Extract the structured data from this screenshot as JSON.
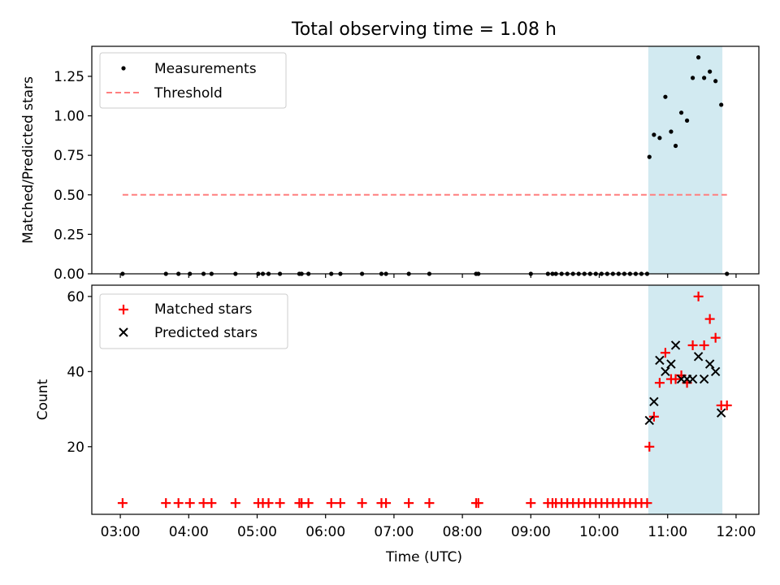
{
  "chart_data": [
    {
      "type": "scatter",
      "title": "Total observing time = 1.08 h",
      "xlabel": "",
      "ylabel": "Matched/Predicted stars",
      "xlim": [
        "02:35",
        "12:20"
      ],
      "ylim": [
        0,
        1.44
      ],
      "yticks": [
        0.0,
        0.25,
        0.5,
        0.75,
        1.0,
        1.25
      ],
      "ytick_labels": [
        "0.00",
        "0.25",
        "0.50",
        "0.75",
        "1.00",
        "1.25"
      ],
      "shaded_interval": {
        "start": "10:43",
        "end": "11:48",
        "color": "#add8e6"
      },
      "grid": false,
      "legend_position": "upper-left",
      "series": [
        {
          "name": "Measurements",
          "marker": "dot",
          "color": "#000000",
          "points": [
            {
              "x": "03:02",
              "y": 0
            },
            {
              "x": "03:40",
              "y": 0
            },
            {
              "x": "03:51",
              "y": 0
            },
            {
              "x": "04:01",
              "y": 0
            },
            {
              "x": "04:13",
              "y": 0
            },
            {
              "x": "04:20",
              "y": 0
            },
            {
              "x": "04:41",
              "y": 0
            },
            {
              "x": "05:01",
              "y": 0
            },
            {
              "x": "05:05",
              "y": 0
            },
            {
              "x": "05:10",
              "y": 0
            },
            {
              "x": "05:20",
              "y": 0
            },
            {
              "x": "05:37",
              "y": 0
            },
            {
              "x": "05:39",
              "y": 0
            },
            {
              "x": "05:45",
              "y": 0
            },
            {
              "x": "06:05",
              "y": 0
            },
            {
              "x": "06:13",
              "y": 0
            },
            {
              "x": "06:32",
              "y": 0
            },
            {
              "x": "06:49",
              "y": 0
            },
            {
              "x": "06:53",
              "y": 0
            },
            {
              "x": "07:13",
              "y": 0
            },
            {
              "x": "07:31",
              "y": 0
            },
            {
              "x": "08:12",
              "y": 0
            },
            {
              "x": "08:14",
              "y": 0
            },
            {
              "x": "09:00",
              "y": 0
            },
            {
              "x": "09:15",
              "y": 0
            },
            {
              "x": "09:19",
              "y": 0
            },
            {
              "x": "09:22",
              "y": 0
            },
            {
              "x": "09:27",
              "y": 0
            },
            {
              "x": "09:32",
              "y": 0
            },
            {
              "x": "09:37",
              "y": 0
            },
            {
              "x": "09:42",
              "y": 0
            },
            {
              "x": "09:47",
              "y": 0
            },
            {
              "x": "09:52",
              "y": 0
            },
            {
              "x": "09:57",
              "y": 0
            },
            {
              "x": "10:02",
              "y": 0
            },
            {
              "x": "10:07",
              "y": 0
            },
            {
              "x": "10:12",
              "y": 0
            },
            {
              "x": "10:17",
              "y": 0
            },
            {
              "x": "10:22",
              "y": 0
            },
            {
              "x": "10:27",
              "y": 0
            },
            {
              "x": "10:32",
              "y": 0
            },
            {
              "x": "10:37",
              "y": 0
            },
            {
              "x": "10:42",
              "y": 0
            },
            {
              "x": "10:44",
              "y": 0.74
            },
            {
              "x": "10:48",
              "y": 0.88
            },
            {
              "x": "10:53",
              "y": 0.86
            },
            {
              "x": "10:58",
              "y": 1.12
            },
            {
              "x": "11:03",
              "y": 0.9
            },
            {
              "x": "11:07",
              "y": 0.81
            },
            {
              "x": "11:12",
              "y": 1.02
            },
            {
              "x": "11:17",
              "y": 0.97
            },
            {
              "x": "11:22",
              "y": 1.24
            },
            {
              "x": "11:27",
              "y": 1.37
            },
            {
              "x": "11:32",
              "y": 1.24
            },
            {
              "x": "11:37",
              "y": 1.28
            },
            {
              "x": "11:42",
              "y": 1.22
            },
            {
              "x": "11:47",
              "y": 1.07
            },
            {
              "x": "11:52",
              "y": 0
            }
          ]
        },
        {
          "name": "Threshold",
          "type": "line",
          "style": "dashed",
          "color": "#ff7f7f",
          "points": [
            {
              "x": "03:02",
              "y": 0.5
            },
            {
              "x": "11:52",
              "y": 0.5
            }
          ]
        }
      ]
    },
    {
      "type": "scatter",
      "title": "",
      "xlabel": "Time (UTC)",
      "ylabel": "Count",
      "xlim": [
        "02:35",
        "12:20"
      ],
      "ylim": [
        2,
        63
      ],
      "yticks": [
        20,
        40,
        60
      ],
      "ytick_labels": [
        "20",
        "40",
        "60"
      ],
      "xticks": [
        "03:00",
        "04:00",
        "05:00",
        "06:00",
        "07:00",
        "08:00",
        "09:00",
        "10:00",
        "11:00",
        "12:00"
      ],
      "shaded_interval": {
        "start": "10:43",
        "end": "11:48",
        "color": "#add8e6"
      },
      "grid": false,
      "legend_position": "upper-left",
      "series": [
        {
          "name": "Matched stars",
          "marker": "plus",
          "color": "#ff0000",
          "points": [
            {
              "x": "03:02",
              "y": 5
            },
            {
              "x": "03:40",
              "y": 5
            },
            {
              "x": "03:51",
              "y": 5
            },
            {
              "x": "04:01",
              "y": 5
            },
            {
              "x": "04:13",
              "y": 5
            },
            {
              "x": "04:20",
              "y": 5
            },
            {
              "x": "04:41",
              "y": 5
            },
            {
              "x": "05:01",
              "y": 5
            },
            {
              "x": "05:05",
              "y": 5
            },
            {
              "x": "05:10",
              "y": 5
            },
            {
              "x": "05:20",
              "y": 5
            },
            {
              "x": "05:37",
              "y": 5
            },
            {
              "x": "05:39",
              "y": 5
            },
            {
              "x": "05:45",
              "y": 5
            },
            {
              "x": "06:05",
              "y": 5
            },
            {
              "x": "06:13",
              "y": 5
            },
            {
              "x": "06:32",
              "y": 5
            },
            {
              "x": "06:49",
              "y": 5
            },
            {
              "x": "06:53",
              "y": 5
            },
            {
              "x": "07:13",
              "y": 5
            },
            {
              "x": "07:31",
              "y": 5
            },
            {
              "x": "08:12",
              "y": 5
            },
            {
              "x": "08:14",
              "y": 5
            },
            {
              "x": "09:00",
              "y": 5
            },
            {
              "x": "09:15",
              "y": 5
            },
            {
              "x": "09:19",
              "y": 5
            },
            {
              "x": "09:22",
              "y": 5
            },
            {
              "x": "09:27",
              "y": 5
            },
            {
              "x": "09:32",
              "y": 5
            },
            {
              "x": "09:37",
              "y": 5
            },
            {
              "x": "09:42",
              "y": 5
            },
            {
              "x": "09:47",
              "y": 5
            },
            {
              "x": "09:52",
              "y": 5
            },
            {
              "x": "09:57",
              "y": 5
            },
            {
              "x": "10:02",
              "y": 5
            },
            {
              "x": "10:07",
              "y": 5
            },
            {
              "x": "10:12",
              "y": 5
            },
            {
              "x": "10:17",
              "y": 5
            },
            {
              "x": "10:22",
              "y": 5
            },
            {
              "x": "10:27",
              "y": 5
            },
            {
              "x": "10:32",
              "y": 5
            },
            {
              "x": "10:37",
              "y": 5
            },
            {
              "x": "10:42",
              "y": 5
            },
            {
              "x": "10:44",
              "y": 20
            },
            {
              "x": "10:48",
              "y": 28
            },
            {
              "x": "10:53",
              "y": 37
            },
            {
              "x": "10:58",
              "y": 45
            },
            {
              "x": "11:03",
              "y": 38
            },
            {
              "x": "11:07",
              "y": 38
            },
            {
              "x": "11:12",
              "y": 39
            },
            {
              "x": "11:17",
              "y": 37
            },
            {
              "x": "11:22",
              "y": 47
            },
            {
              "x": "11:27",
              "y": 60
            },
            {
              "x": "11:32",
              "y": 47
            },
            {
              "x": "11:37",
              "y": 54
            },
            {
              "x": "11:42",
              "y": 49
            },
            {
              "x": "11:47",
              "y": 31
            },
            {
              "x": "11:52",
              "y": 31
            }
          ]
        },
        {
          "name": "Predicted stars",
          "marker": "x",
          "color": "#000000",
          "points": [
            {
              "x": "10:44",
              "y": 27
            },
            {
              "x": "10:48",
              "y": 32
            },
            {
              "x": "10:53",
              "y": 43
            },
            {
              "x": "10:58",
              "y": 40
            },
            {
              "x": "11:03",
              "y": 42
            },
            {
              "x": "11:07",
              "y": 47
            },
            {
              "x": "11:12",
              "y": 38
            },
            {
              "x": "11:17",
              "y": 38
            },
            {
              "x": "11:22",
              "y": 38
            },
            {
              "x": "11:27",
              "y": 44
            },
            {
              "x": "11:32",
              "y": 38
            },
            {
              "x": "11:37",
              "y": 42
            },
            {
              "x": "11:42",
              "y": 40
            },
            {
              "x": "11:47",
              "y": 29
            }
          ]
        }
      ]
    }
  ]
}
